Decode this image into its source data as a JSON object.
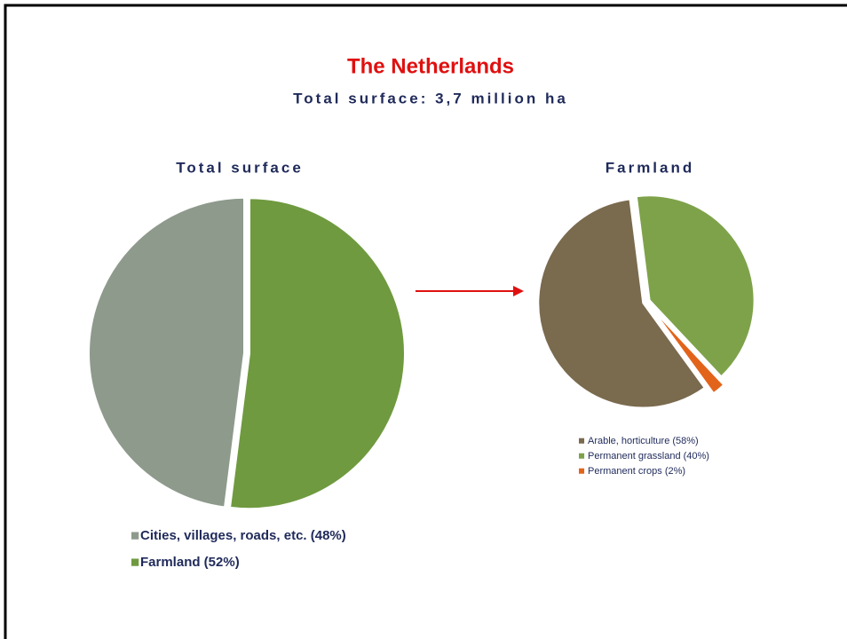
{
  "header": {
    "title": "The Netherlands",
    "subtitle": "Total surface: 3,7 million ha"
  },
  "chart_data": [
    {
      "type": "pie",
      "title": "Total surface",
      "categories": [
        "Cities, villages, roads, etc. (48%)",
        "Farmland (52%)"
      ],
      "values": [
        48,
        52
      ],
      "colors": [
        "#8e9a8c",
        "#6f9a3f"
      ]
    },
    {
      "type": "pie",
      "title": "Farmland",
      "categories": [
        "Arable, horticulture (58%)",
        "Permanent grassland (40%)",
        "Permanent crops (2%)"
      ],
      "values": [
        58,
        40,
        2
      ],
      "colors": [
        "#7a6a4e",
        "#7ea24a",
        "#e2641a"
      ]
    }
  ]
}
